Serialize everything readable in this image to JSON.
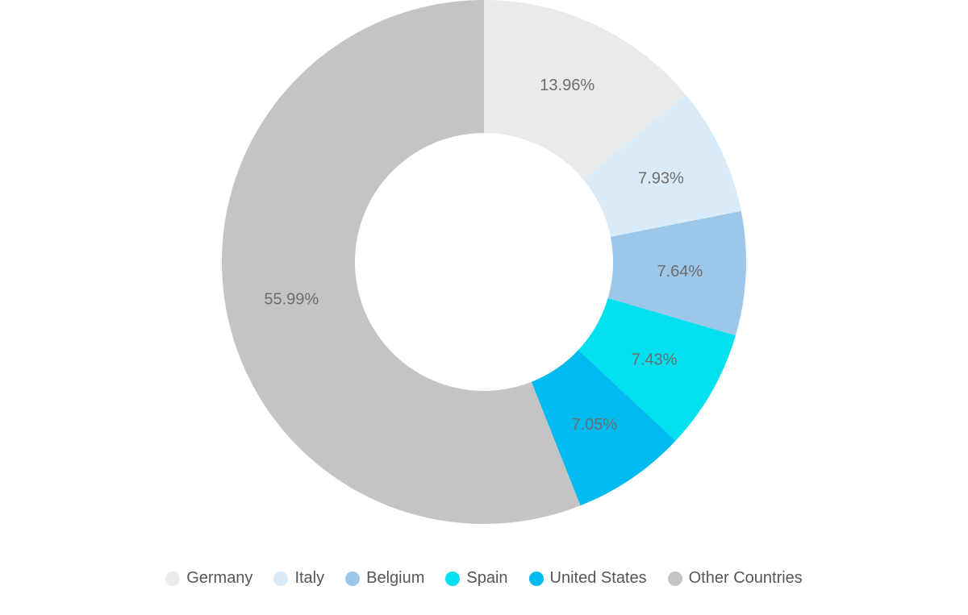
{
  "chart_data": {
    "type": "pie",
    "subtype": "donut",
    "title": "",
    "start_angle_deg": 0,
    "direction": "clockwise",
    "inner_radius_ratio": 0.49,
    "legend_position": "bottom",
    "label_color": "#6d6d6d",
    "series": [
      {
        "label": "Germany",
        "value": 13.96,
        "display": "13.96%",
        "color": "#e8ebe9"
      },
      {
        "label": "Italy",
        "value": 7.93,
        "display": "7.93%",
        "color": "#d9eaf8"
      },
      {
        "label": "Belgium",
        "value": 7.64,
        "display": "7.64%",
        "color": "#9cc7e9"
      },
      {
        "label": "Spain",
        "value": 7.43,
        "display": "7.43%",
        "color": "#00e0ef"
      },
      {
        "label": "United States",
        "value": 7.05,
        "display": "7.05%",
        "color": "#00baf0"
      },
      {
        "label": "Other Countries",
        "value": 55.99,
        "display": "55.99%",
        "color": "#c4c4c4"
      }
    ]
  }
}
